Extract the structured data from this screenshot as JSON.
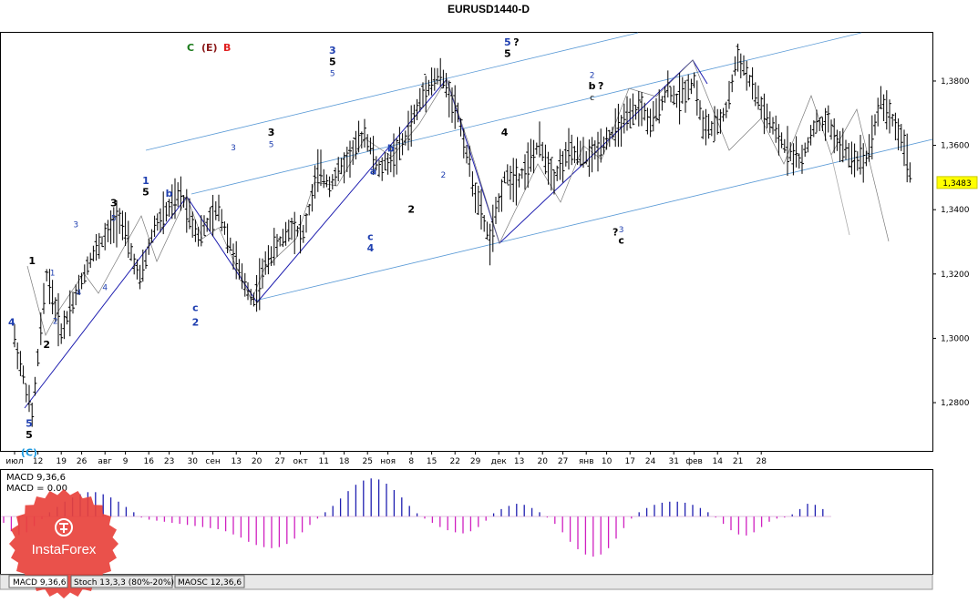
{
  "chart_data": {
    "type": "line",
    "title": "EURUSD1440-D",
    "wave_header": [
      {
        "text": "C",
        "color": "#1a7a1a"
      },
      {
        "text": "(E)",
        "color": "#8b1a1a"
      },
      {
        "text": "B",
        "color": "#e02020"
      }
    ],
    "price_axis": {
      "ylim": [
        1.265,
        1.395
      ],
      "ticks": [
        "1,3800",
        "1,3600",
        "1,3400",
        "1,3200",
        "1,3000",
        "1,2800"
      ],
      "tick_values": [
        1.38,
        1.36,
        1.34,
        1.32,
        1.3,
        1.28
      ],
      "current_price": "1,3483",
      "current_value": 1.3483,
      "current_color": "#ffff00"
    },
    "time_axis": {
      "labels": [
        "июл",
        "12",
        "19",
        "26",
        "авг",
        "9",
        "16",
        "23",
        "30",
        "сен",
        "13",
        "20",
        "27",
        "окт",
        "11",
        "18",
        "25",
        "ноя",
        "8",
        "15",
        "22",
        "29",
        "дек",
        "13",
        "20",
        "27",
        "янв",
        "10",
        "17",
        "24",
        "31",
        "фев",
        "14",
        "21",
        "28"
      ],
      "bar_index": [
        0,
        8,
        16,
        23,
        31,
        38,
        46,
        53,
        61,
        68,
        76,
        83,
        91,
        98,
        106,
        113,
        121,
        128,
        136,
        143,
        151,
        158,
        166,
        173,
        181,
        188,
        196,
        203,
        211,
        218,
        226,
        233,
        241,
        248,
        256
      ]
    },
    "price_path": [
      [
        0,
        1.3
      ],
      [
        6,
        1.276
      ],
      [
        11,
        1.32
      ],
      [
        16,
        1.302
      ],
      [
        26,
        1.325
      ],
      [
        36,
        1.338
      ],
      [
        43,
        1.318
      ],
      [
        48,
        1.335
      ],
      [
        51,
        1.338
      ],
      [
        57,
        1.345
      ],
      [
        63,
        1.332
      ],
      [
        70,
        1.34
      ],
      [
        78,
        1.318
      ],
      [
        82,
        1.312
      ],
      [
        87,
        1.325
      ],
      [
        95,
        1.335
      ],
      [
        99,
        1.332
      ],
      [
        104,
        1.352
      ],
      [
        108,
        1.348
      ],
      [
        116,
        1.358
      ],
      [
        120,
        1.364
      ],
      [
        125,
        1.352
      ],
      [
        133,
        1.36
      ],
      [
        141,
        1.378
      ],
      [
        146,
        1.382
      ],
      [
        152,
        1.37
      ],
      [
        158,
        1.345
      ],
      [
        163,
        1.33
      ],
      [
        168,
        1.35
      ],
      [
        173,
        1.35
      ],
      [
        180,
        1.36
      ],
      [
        185,
        1.35
      ],
      [
        190,
        1.358
      ],
      [
        197,
        1.356
      ],
      [
        203,
        1.362
      ],
      [
        210,
        1.368
      ],
      [
        215,
        1.372
      ],
      [
        218,
        1.366
      ],
      [
        224,
        1.378
      ],
      [
        227,
        1.374
      ],
      [
        233,
        1.38
      ],
      [
        236,
        1.366
      ],
      [
        240,
        1.365
      ],
      [
        244,
        1.371
      ],
      [
        248,
        1.388
      ],
      [
        253,
        1.378
      ],
      [
        257,
        1.37
      ],
      [
        262,
        1.362
      ],
      [
        266,
        1.358
      ],
      [
        270,
        1.355
      ],
      [
        274,
        1.366
      ],
      [
        279,
        1.367
      ],
      [
        283,
        1.36
      ],
      [
        287,
        1.356
      ],
      [
        292,
        1.356
      ],
      [
        297,
        1.374
      ],
      [
        301,
        1.368
      ],
      [
        305,
        1.36
      ],
      [
        308,
        1.348
      ]
    ],
    "wave_labels": [
      {
        "t": "4",
        "i": -1,
        "v": 1.304,
        "c": "#1f3fb0",
        "s": 1
      },
      {
        "t": "1",
        "i": 6,
        "v": 1.323,
        "c": "#000000",
        "s": 1
      },
      {
        "t": "5",
        "i": 5,
        "v": 1.2725,
        "c": "#1f3fb0",
        "s": 1
      },
      {
        "t": "5",
        "i": 5,
        "v": 1.269,
        "c": "#000000",
        "s": 1
      },
      {
        "t": "(C)",
        "i": 5,
        "v": 1.2635,
        "c": "#1e9ae0",
        "s": 1
      },
      {
        "t": "2",
        "i": 11,
        "v": 1.297,
        "c": "#000000",
        "s": 1
      },
      {
        "t": "1",
        "i": 13,
        "v": 1.3195,
        "c": "#1f3fb0",
        "s": 0
      },
      {
        "t": "2",
        "i": 14,
        "v": 1.3045,
        "c": "#1f3fb0",
        "s": 0
      },
      {
        "t": "3",
        "i": 21,
        "v": 1.3345,
        "c": "#1f3fb0",
        "s": 0
      },
      {
        "t": "4",
        "i": 22,
        "v": 1.3135,
        "c": "#1f3fb0",
        "s": 0
      },
      {
        "t": "3",
        "i": 34,
        "v": 1.341,
        "c": "#000000",
        "s": 1
      },
      {
        "t": "5",
        "i": 34,
        "v": 1.3365,
        "c": "#1f3fb0",
        "s": 0
      },
      {
        "t": "4",
        "i": 31,
        "v": 1.315,
        "c": "#1f3fb0",
        "s": 0
      },
      {
        "t": "1",
        "i": 45,
        "v": 1.348,
        "c": "#1f3fb0",
        "s": 1
      },
      {
        "t": "5",
        "i": 45,
        "v": 1.3445,
        "c": "#000000",
        "s": 1
      },
      {
        "t": "b",
        "i": 53,
        "v": 1.344,
        "c": "#1f3fb0",
        "s": 1
      },
      {
        "t": "2",
        "i": 62,
        "v": 1.304,
        "c": "#1f3fb0",
        "s": 1
      },
      {
        "t": "c",
        "i": 62,
        "v": 1.3085,
        "c": "#1f3fb0",
        "s": 1
      },
      {
        "t": "3",
        "i": 75,
        "v": 1.3585,
        "c": "#1f3fb0",
        "s": 0
      },
      {
        "t": "3",
        "i": 88,
        "v": 1.363,
        "c": "#000000",
        "s": 1
      },
      {
        "t": "5",
        "i": 88,
        "v": 1.3595,
        "c": "#1f3fb0",
        "s": 0
      },
      {
        "t": "3",
        "i": 109,
        "v": 1.3885,
        "c": "#1f3fb0",
        "s": 1
      },
      {
        "t": "5",
        "i": 109,
        "v": 1.385,
        "c": "#000000",
        "s": 1
      },
      {
        "t": "5",
        "i": 109,
        "v": 1.3815,
        "c": "#1f3fb0",
        "s": 0
      },
      {
        "t": "4",
        "i": 122,
        "v": 1.327,
        "c": "#1f3fb0",
        "s": 1
      },
      {
        "t": "c",
        "i": 122,
        "v": 1.3305,
        "c": "#1f3fb0",
        "s": 1
      },
      {
        "t": "5",
        "i": 169,
        "v": 1.391,
        "c": "#1f3fb0",
        "s": 1
      },
      {
        "t": "?",
        "i": 172,
        "v": 1.391,
        "c": "#000000",
        "s": 1
      },
      {
        "t": "5",
        "i": 169,
        "v": 1.3875,
        "c": "#000000",
        "s": 1
      },
      {
        "t": "2",
        "i": 198,
        "v": 1.381,
        "c": "#1f3fb0",
        "s": 0
      },
      {
        "t": "b",
        "i": 198,
        "v": 1.3775,
        "c": "#000000",
        "s": 1
      },
      {
        "t": "?",
        "i": 201,
        "v": 1.3775,
        "c": "#000000",
        "s": 1
      },
      {
        "t": "c",
        "i": 198,
        "v": 1.374,
        "c": "#000000",
        "s": 0
      },
      {
        "t": "?",
        "i": 206,
        "v": 1.332,
        "c": "#000000",
        "s": 1
      },
      {
        "t": "3",
        "i": 208,
        "v": 1.333,
        "c": "#1f3fb0",
        "s": 0
      },
      {
        "t": "c",
        "i": 208,
        "v": 1.3295,
        "c": "#000000",
        "s": 1
      },
      {
        "t": "4",
        "i": 168,
        "v": 1.363,
        "c": "#000000",
        "s": 1
      },
      {
        "t": "a",
        "i": 123,
        "v": 1.351,
        "c": "#1f3fb0",
        "s": 1
      },
      {
        "t": "b",
        "i": 129,
        "v": 1.358,
        "c": "#1f3fb0",
        "s": 1
      },
      {
        "t": "2",
        "i": 136,
        "v": 1.339,
        "c": "#000000",
        "s": 1
      },
      {
        "t": "2",
        "i": 147,
        "v": 1.35,
        "c": "#1f3fb0",
        "s": 0
      }
    ],
    "macd": {
      "label1": "MACD 9,36,6",
      "label2": "MACD = 0.00",
      "values": [
        -0.12,
        -0.28,
        -0.35,
        -0.3,
        -0.18,
        -0.05,
        0.08,
        0.18,
        0.28,
        0.36,
        0.42,
        0.46,
        0.46,
        0.42,
        0.36,
        0.28,
        0.18,
        0.08,
        -0.02,
        -0.06,
        -0.08,
        -0.1,
        -0.12,
        -0.14,
        -0.16,
        -0.18,
        -0.2,
        -0.22,
        -0.24,
        -0.28,
        -0.34,
        -0.4,
        -0.48,
        -0.54,
        -0.58,
        -0.6,
        -0.58,
        -0.52,
        -0.42,
        -0.3,
        -0.16,
        -0.04,
        0.08,
        0.2,
        0.34,
        0.48,
        0.6,
        0.68,
        0.72,
        0.7,
        0.62,
        0.5,
        0.36,
        0.2,
        0.06,
        -0.04,
        -0.12,
        -0.2,
        -0.26,
        -0.3,
        -0.32,
        -0.28,
        -0.2,
        -0.08,
        0.06,
        0.14,
        0.2,
        0.24,
        0.22,
        0.16,
        0.08,
        -0.02,
        -0.14,
        -0.3,
        -0.48,
        -0.62,
        -0.72,
        -0.76,
        -0.72,
        -0.6,
        -0.42,
        -0.22,
        -0.04,
        0.08,
        0.16,
        0.22,
        0.26,
        0.28,
        0.28,
        0.26,
        0.22,
        0.16,
        0.08,
        -0.02,
        -0.14,
        -0.26,
        -0.34,
        -0.36,
        -0.3,
        -0.2,
        -0.1,
        -0.04,
        -0.02,
        0.04,
        0.14,
        0.24,
        0.22,
        0.14
      ],
      "pos_color": "#1f1fb0",
      "neg_color": "#d020c0"
    },
    "tabs": [
      "MACD 9,36,6",
      "Stoch 13,3,3 (80%-20%)",
      "MAOSC 12,36,6"
    ],
    "logo_text": "InstaForex"
  }
}
